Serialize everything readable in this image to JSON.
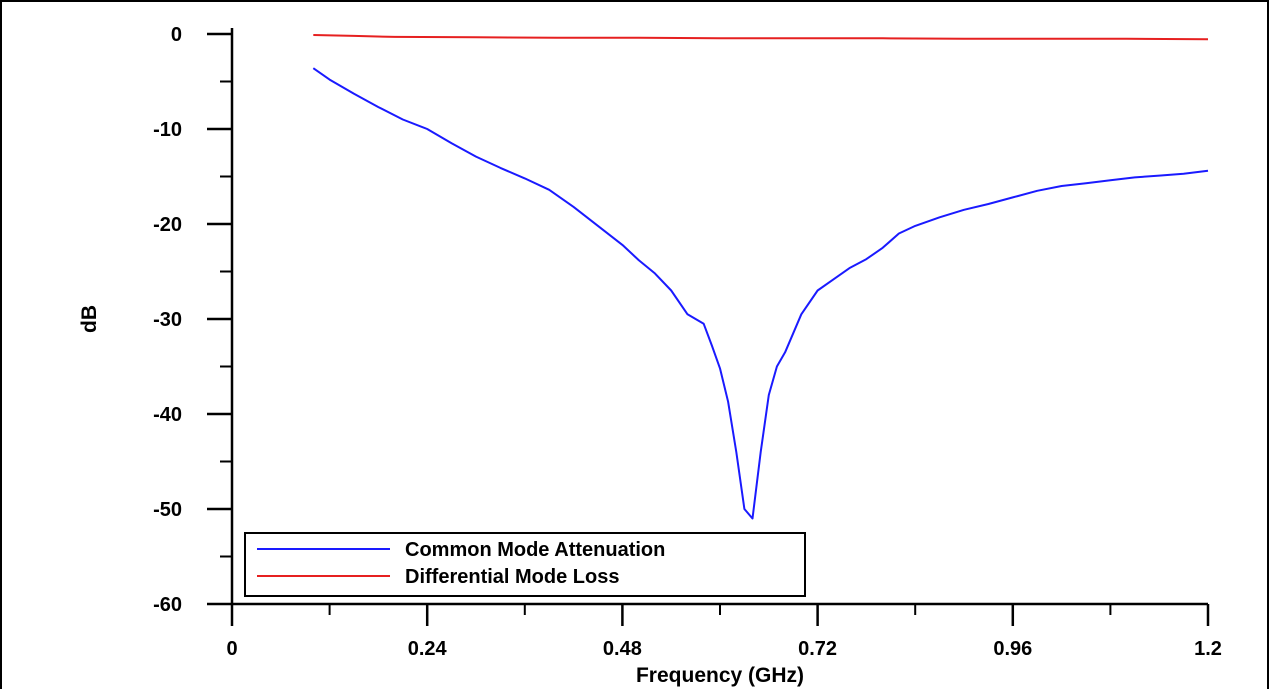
{
  "chart_data": {
    "type": "line",
    "xlabel": "Frequency (GHz)",
    "ylabel": "dB",
    "xlim": [
      0,
      1.2
    ],
    "ylim": [
      -60,
      0
    ],
    "x_ticks": [
      0,
      0.24,
      0.48,
      0.72,
      0.96,
      1.2
    ],
    "x_tick_labels": [
      "0",
      "0.24",
      "0.48",
      "0.72",
      "0.96",
      "1.2"
    ],
    "y_ticks": [
      0,
      -10,
      -20,
      -30,
      -40,
      -50,
      -60
    ],
    "y_tick_labels": [
      "0",
      "-10",
      "-20",
      "-30",
      "-40",
      "-50",
      "-60"
    ],
    "grid": false,
    "legend_position": "bottom-left",
    "series": [
      {
        "name": "Common Mode Attenuation",
        "color": "#1a1aff",
        "x": [
          0.1,
          0.12,
          0.15,
          0.18,
          0.21,
          0.24,
          0.27,
          0.3,
          0.33,
          0.36,
          0.39,
          0.42,
          0.45,
          0.48,
          0.5,
          0.52,
          0.54,
          0.56,
          0.58,
          0.59,
          0.6,
          0.61,
          0.62,
          0.63,
          0.64,
          0.65,
          0.66,
          0.67,
          0.68,
          0.7,
          0.72,
          0.74,
          0.76,
          0.78,
          0.8,
          0.82,
          0.84,
          0.87,
          0.9,
          0.93,
          0.96,
          0.99,
          1.02,
          1.05,
          1.08,
          1.11,
          1.14,
          1.17,
          1.2
        ],
        "y": [
          -3.6,
          -4.8,
          -6.3,
          -7.7,
          -9.0,
          -10.0,
          -11.5,
          -12.9,
          -14.1,
          -15.2,
          -16.4,
          -18.2,
          -20.2,
          -22.2,
          -23.8,
          -25.2,
          -27.0,
          -29.5,
          -30.5,
          -32.8,
          -35.2,
          -38.7,
          -44.0,
          -50.0,
          -51.0,
          -44.0,
          -38.0,
          -35.0,
          -33.5,
          -29.5,
          -27.0,
          -25.8,
          -24.6,
          -23.7,
          -22.5,
          -21.0,
          -20.2,
          -19.3,
          -18.5,
          -17.9,
          -17.2,
          -16.5,
          -16.0,
          -15.7,
          -15.4,
          -15.1,
          -14.9,
          -14.7,
          -14.4
        ]
      },
      {
        "name": "Differential Mode Loss",
        "color": "#e62020",
        "x": [
          0.1,
          0.15,
          0.2,
          0.3,
          0.4,
          0.5,
          0.6,
          0.7,
          0.8,
          0.9,
          1.0,
          1.1,
          1.2
        ],
        "y": [
          -0.1,
          -0.2,
          -0.3,
          -0.35,
          -0.4,
          -0.4,
          -0.45,
          -0.45,
          -0.45,
          -0.5,
          -0.5,
          -0.5,
          -0.55
        ]
      }
    ]
  }
}
